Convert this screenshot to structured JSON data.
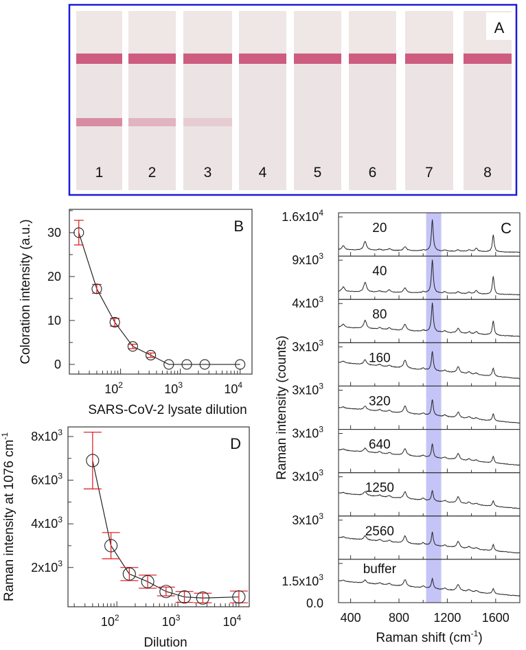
{
  "panel_a": {
    "label": "A",
    "strips": [
      {
        "label": "1",
        "test_line": 0.55
      },
      {
        "label": "2",
        "test_line": 0.3
      },
      {
        "label": "3",
        "test_line": 0.15
      },
      {
        "label": "4",
        "test_line": 0
      },
      {
        "label": "5",
        "test_line": 0
      },
      {
        "label": "6",
        "test_line": 0
      },
      {
        "label": "7",
        "test_line": 0
      },
      {
        "label": "8",
        "test_line": 0
      }
    ],
    "border_color": "#1a1ad6",
    "line_color": "#c8446e"
  },
  "chart_data": [
    {
      "id": "B",
      "type": "scatter",
      "panel_label": "B",
      "xlabel": "SARS-CoV-2 lysate dilution",
      "ylabel": "Coloration intensity (a.u.)",
      "xscale": "log",
      "xlim": [
        13.9,
        15800
      ],
      "ylim": [
        -2.2,
        35.3
      ],
      "xticks": [
        {
          "v": 100,
          "base": "10",
          "exp": "2"
        },
        {
          "v": 1000,
          "base": "10",
          "exp": "3"
        },
        {
          "v": 10000,
          "base": "10",
          "exp": "4"
        }
      ],
      "yticks": [
        {
          "v": 0,
          "label": "0"
        },
        {
          "v": 10,
          "label": "10"
        },
        {
          "v": 20,
          "label": "20"
        },
        {
          "v": 30,
          "label": "30"
        }
      ],
      "x": [
        20,
        40,
        80,
        160,
        320,
        640,
        1280,
        2560,
        10000
      ],
      "y": [
        30,
        17.2,
        9.6,
        4.1,
        2.1,
        0,
        0,
        0,
        0
      ],
      "err": [
        2.8,
        1.0,
        0.9,
        0.5,
        0.5,
        0,
        0,
        0,
        0
      ],
      "marker_color": "#222222",
      "error_color": "#e0262b"
    },
    {
      "id": "D",
      "type": "scatter",
      "panel_label": "D",
      "xlabel": "Dilution",
      "ylabel": "Raman intensity at 1076 cm",
      "ylabel_sup": "-1",
      "xscale": "log",
      "xlim": [
        15.8,
        14800
      ],
      "ylim": [
        200,
        8440
      ],
      "xticks": [
        {
          "v": 100,
          "base": "10",
          "exp": "2"
        },
        {
          "v": 1000,
          "base": "10",
          "exp": "3"
        },
        {
          "v": 10000,
          "base": "10",
          "exp": "4"
        }
      ],
      "yticks": [
        {
          "v": 2000,
          "base": "2x10",
          "exp": "3"
        },
        {
          "v": 4000,
          "base": "4x10",
          "exp": "3"
        },
        {
          "v": 6000,
          "base": "6x10",
          "exp": "3"
        },
        {
          "v": 8000,
          "base": "8x10",
          "exp": "3"
        }
      ],
      "x": [
        40,
        80,
        160,
        320,
        640,
        1280,
        2560,
        10000
      ],
      "y": [
        6900,
        3000,
        1700,
        1350,
        900,
        650,
        600,
        650
      ],
      "err": [
        1300,
        600,
        300,
        300,
        200,
        250,
        220,
        270
      ],
      "marker_color": "#222222",
      "error_color": "#e0262b"
    },
    {
      "id": "C",
      "type": "line",
      "panel_label": "C",
      "xlabel": "Raman shift (cm",
      "xlabel_sup": "-1",
      "xlabel_end": ")",
      "ylabel": "Raman intensity (counts)",
      "xlim": [
        300,
        1800
      ],
      "xticks": [
        400,
        800,
        1200,
        1600
      ],
      "highlight_band": [
        1025,
        1150
      ],
      "highlight_color": "#c4c4f7",
      "peaks_cm": [
        340,
        520,
        640,
        720,
        850,
        1000,
        1076,
        1180,
        1290,
        1380,
        1440,
        1580
      ],
      "series": [
        {
          "name": "20",
          "ytick_base": "1.6x10",
          "ytick_exp": "4",
          "base": [
            0.12,
            0.06
          ],
          "amps": [
            0.1,
            0.22,
            0.03,
            0.05,
            0.1,
            0.02,
            0.78,
            0.03,
            0.04,
            0.04,
            0.08,
            0.42
          ]
        },
        {
          "name": "40",
          "ytick_base": "9x10",
          "ytick_exp": "3",
          "base": [
            0.16,
            0.08
          ],
          "amps": [
            0.12,
            0.24,
            0.03,
            0.06,
            0.12,
            0.03,
            0.82,
            0.04,
            0.05,
            0.04,
            0.08,
            0.44
          ]
        },
        {
          "name": "80",
          "ytick_base": "4x10",
          "ytick_exp": "3",
          "base": [
            0.35,
            0.12
          ],
          "amps": [
            0.08,
            0.2,
            0.04,
            0.05,
            0.15,
            0.03,
            0.72,
            0.04,
            0.12,
            0.05,
            0.06,
            0.35
          ]
        },
        {
          "name": "160",
          "ytick_base": "3x10",
          "ytick_exp": "3",
          "base": [
            0.55,
            0.15
          ],
          "amps": [
            0.04,
            0.12,
            0.04,
            0.04,
            0.2,
            0.04,
            0.48,
            0.04,
            0.15,
            0.05,
            0.04,
            0.2
          ]
        },
        {
          "name": "320",
          "ytick_base": "3x10",
          "ytick_exp": "3",
          "base": [
            0.5,
            0.12
          ],
          "amps": [
            0.03,
            0.1,
            0.04,
            0.04,
            0.18,
            0.04,
            0.4,
            0.04,
            0.14,
            0.05,
            0.04,
            0.17
          ]
        },
        {
          "name": "640",
          "ytick_base": "3x10",
          "ytick_exp": "3",
          "base": [
            0.53,
            0.15
          ],
          "amps": [
            0.03,
            0.1,
            0.04,
            0.04,
            0.17,
            0.04,
            0.34,
            0.04,
            0.16,
            0.05,
            0.04,
            0.16
          ]
        },
        {
          "name": "1250",
          "ytick_base": "3x10",
          "ytick_exp": "3",
          "base": [
            0.53,
            0.15
          ],
          "amps": [
            0.03,
            0.09,
            0.04,
            0.04,
            0.17,
            0.05,
            0.26,
            0.04,
            0.16,
            0.05,
            0.04,
            0.13
          ]
        },
        {
          "name": "2560",
          "ytick_base": "3x10",
          "ytick_exp": "3",
          "base": [
            0.5,
            0.12
          ],
          "amps": [
            0.03,
            0.1,
            0.04,
            0.04,
            0.18,
            0.05,
            0.33,
            0.04,
            0.16,
            0.05,
            0.04,
            0.15
          ]
        },
        {
          "name": "buffer",
          "ytick_base": "1.5x10",
          "ytick_exp": "3",
          "base": [
            0.5,
            0.13
          ],
          "amps": [
            0.03,
            0.08,
            0.04,
            0.04,
            0.17,
            0.05,
            0.25,
            0.04,
            0.16,
            0.05,
            0.04,
            0.13
          ]
        }
      ],
      "bottom_tick": "0.0"
    }
  ]
}
